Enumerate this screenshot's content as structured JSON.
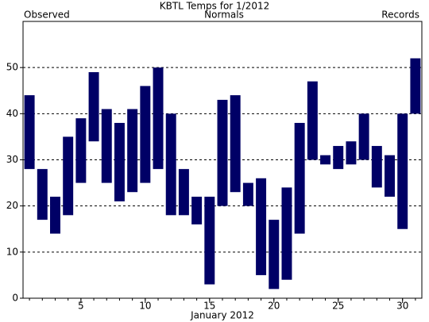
{
  "chart_data": {
    "type": "range-bar",
    "title": "KBTL Temps for 1/2012",
    "legend": [
      {
        "label": "Observed",
        "color": "#000066"
      },
      {
        "label": "Normals",
        "color": "#006600"
      },
      {
        "label": "Records",
        "color": "#b38fd9"
      }
    ],
    "x_label": "January 2012",
    "x": [
      1,
      2,
      3,
      4,
      5,
      6,
      7,
      8,
      9,
      10,
      11,
      12,
      13,
      14,
      15,
      16,
      17,
      18,
      19,
      20,
      21,
      22,
      23,
      24,
      25,
      26,
      27,
      28,
      29,
      30,
      31
    ],
    "highs": [
      44,
      28,
      22,
      35,
      39,
      49,
      41,
      38,
      41,
      46,
      50,
      40,
      28,
      22,
      22,
      43,
      44,
      25,
      26,
      17,
      24,
      38,
      47,
      31,
      33,
      34,
      40,
      33,
      31,
      40,
      52
    ],
    "lows": [
      28,
      17,
      14,
      18,
      25,
      34,
      25,
      21,
      23,
      25,
      28,
      18,
      18,
      16,
      3,
      20,
      23,
      20,
      5,
      2,
      4,
      14,
      30,
      29,
      28,
      29,
      30,
      24,
      22,
      15,
      40
    ],
    "color": "#000066",
    "xlim": [
      0.5,
      31.5
    ],
    "xticks": [
      5,
      10,
      15,
      20,
      25,
      30
    ],
    "ylim": [
      0,
      60
    ],
    "yticks": [
      0,
      10,
      20,
      30,
      40,
      50
    ],
    "grid": true
  }
}
